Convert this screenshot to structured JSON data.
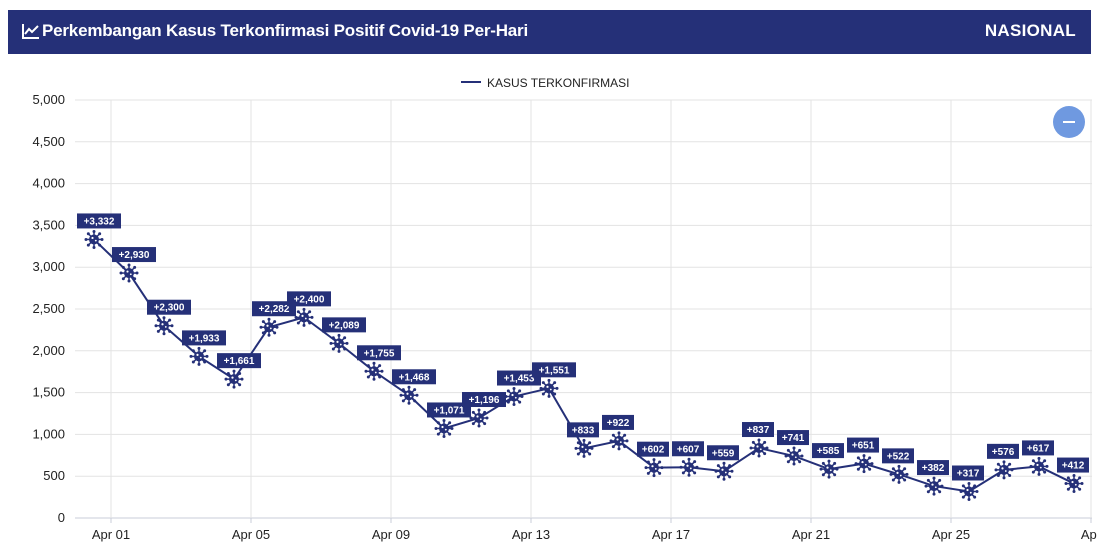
{
  "header": {
    "title": "Perkembangan Kasus Terkonfirmasi Positif Covid-19 Per-Hari",
    "scope": "NASIONAL"
  },
  "chart_data": {
    "type": "line",
    "series": [
      {
        "name": "KASUS TERKONFIRMASI",
        "color": "#253078",
        "x": [
          "Apr 01",
          "Apr 02",
          "Apr 03",
          "Apr 04",
          "Apr 05",
          "Apr 06",
          "Apr 07",
          "Apr 08",
          "Apr 09",
          "Apr 10",
          "Apr 11",
          "Apr 12",
          "Apr 13",
          "Apr 14",
          "Apr 15",
          "Apr 16",
          "Apr 17",
          "Apr 18",
          "Apr 19",
          "Apr 20",
          "Apr 21",
          "Apr 22",
          "Apr 23",
          "Apr 24",
          "Apr 25",
          "Apr 26",
          "Apr 27",
          "Apr 28",
          "Apr 29"
        ],
        "values": [
          3332,
          2930,
          2300,
          1933,
          1661,
          2282,
          2400,
          2089,
          1755,
          1468,
          1071,
          1196,
          1453,
          1551,
          833,
          922,
          602,
          607,
          559,
          837,
          741,
          585,
          651,
          522,
          382,
          317,
          576,
          617,
          412
        ],
        "labels": [
          "+3,332",
          "+2,930",
          "+2,300",
          "+1,933",
          "+1,661",
          "+2,282",
          "+2,400",
          "+2,089",
          "+1,755",
          "+1,468",
          "+1,071",
          "+1,196",
          "+1,453",
          "+1,551",
          "+833",
          "+922",
          "+602",
          "+607",
          "+559",
          "+837",
          "+741",
          "+585",
          "+651",
          "+522",
          "+382",
          "+317",
          "+576",
          "+617",
          "+412"
        ]
      }
    ],
    "x_ticks": [
      "Apr 01",
      "Apr 05",
      "Apr 09",
      "Apr 13",
      "Apr 17",
      "Apr 21",
      "Apr 25",
      "Apr"
    ],
    "y_ticks": [
      "0",
      "500",
      "1,000",
      "1,500",
      "2,000",
      "2,500",
      "3,000",
      "3,500",
      "4,000",
      "4,500",
      "5,000"
    ],
    "ylim": [
      0,
      5000
    ],
    "grid": true,
    "legend_position": "top-center",
    "marker_icon": "virus-icon",
    "zoom_button_icon": "minus-icon"
  }
}
